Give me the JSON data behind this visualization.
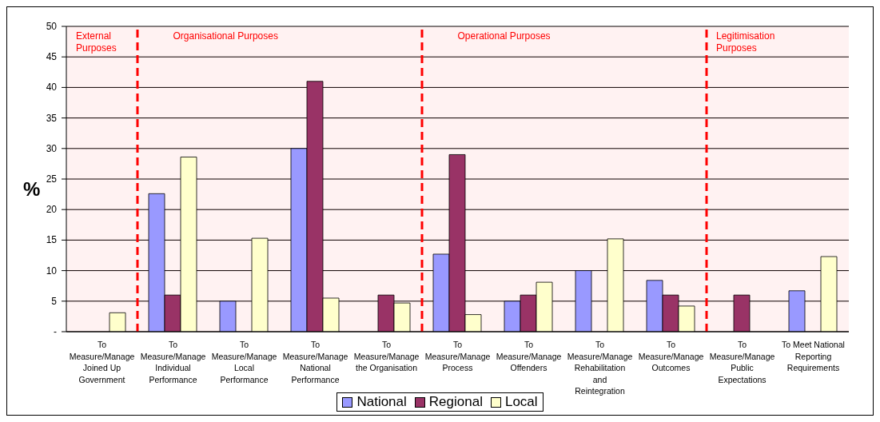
{
  "chart_data": {
    "type": "bar",
    "categories": [
      "To Measure/Manage Joined Up Government",
      "To Measure/Manage Individual Performance",
      "To Measure/Manage Local Performance",
      "To Measure/Manage National Performance",
      "To Measure/Manage the Organisation",
      "To Measure/Manage Process",
      "To Measure/Manage Offenders",
      "To Measure/Manage Rehabilitation and Reintegration",
      "To Measure/Manage Outcomes",
      "To Measure/Manage Public Expectations",
      "To Meet National Reporting Requirements"
    ],
    "series": [
      {
        "name": "National",
        "color": "#9999ff",
        "values": [
          null,
          22.6,
          5,
          30,
          null,
          12.7,
          5,
          10,
          8.4,
          null,
          6.7
        ]
      },
      {
        "name": "Regional",
        "color": "#993366",
        "values": [
          null,
          6,
          null,
          41,
          6,
          29,
          6,
          null,
          6,
          6,
          null
        ]
      },
      {
        "name": "Local",
        "color": "#ffffcc",
        "values": [
          3.1,
          28.6,
          15.3,
          5.5,
          4.7,
          2.8,
          8.1,
          15.2,
          4.2,
          null,
          12.3
        ]
      }
    ],
    "ylabel": "%",
    "ylim": [
      0,
      50
    ],
    "yticks": [
      {
        "value": 0,
        "label": "-"
      },
      5,
      10,
      15,
      20,
      25,
      30,
      35,
      40,
      45,
      50
    ],
    "bands": [
      {
        "axis": "x",
        "from": "To Measure/Manage Joined Up Government",
        "to": "To Measure/Manage Joined Up Government",
        "label": "External Purposes",
        "color": "#ff0000"
      },
      {
        "axis": "x",
        "from": "To Measure/Manage Individual Performance",
        "to": "To Measure/Manage the Organisation",
        "label": "Organisational Purposes",
        "color": "#ff0000"
      },
      {
        "axis": "x",
        "from": "To Measure/Manage Process",
        "to": "To Measure/Manage Outcomes",
        "label": "Operational Purposes",
        "color": "#ff0000"
      },
      {
        "axis": "x",
        "from": "To Measure/Manage Public Expectations",
        "to": "To Meet National Reporting Requirements",
        "label": "Legitimisation Purposes",
        "color": "#ff0000"
      }
    ],
    "grid": "y",
    "legend": "bottom"
  }
}
